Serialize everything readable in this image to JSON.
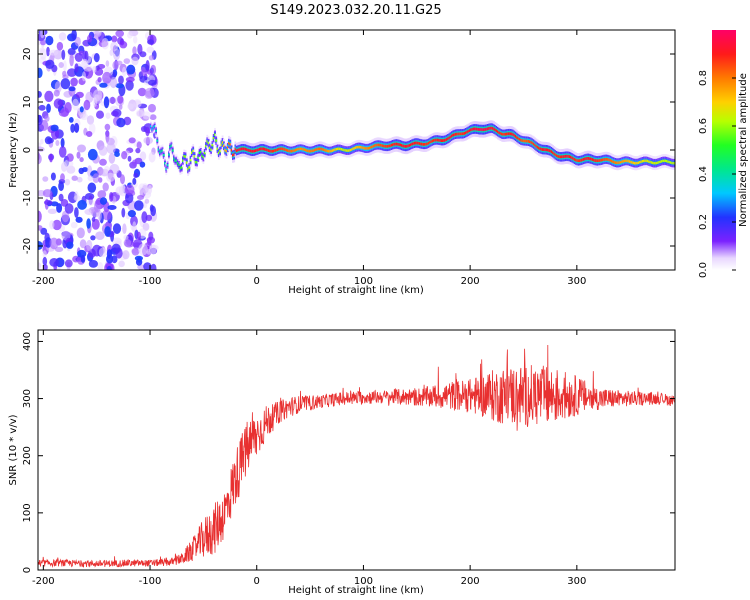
{
  "title": "S149.2023.032.20.11.G25",
  "chart_data": [
    {
      "type": "heatmap",
      "xlabel": "Height of straight line (km)",
      "ylabel": "Frequency (Hz)",
      "xlim": [
        -205,
        392
      ],
      "ylim": [
        -25,
        25
      ],
      "x_ticks": [
        -200,
        -100,
        0,
        100,
        200,
        300
      ],
      "y_ticks": [
        -20,
        -10,
        0,
        10,
        20
      ],
      "grid": false,
      "colorbar": {
        "label": "Normalized spectral amplitude",
        "range": [
          0,
          1
        ],
        "ticks": [
          "0.0",
          "0.2",
          "0.4",
          "0.6",
          "0.8"
        ]
      },
      "noise_region_x": [
        -205,
        -95
      ],
      "ridge": {
        "x": [
          -100,
          -95,
          -90,
          -85,
          -80,
          -75,
          -70,
          -65,
          -60,
          -55,
          -50,
          -45,
          -40,
          -35,
          -30,
          -25,
          -20,
          -10,
          0,
          20,
          40,
          60,
          80,
          100,
          120,
          140,
          160,
          180,
          190,
          200,
          210,
          220,
          230,
          240,
          250,
          260,
          270,
          280,
          290,
          300,
          310,
          320,
          340,
          360,
          380,
          392
        ],
        "frequency": [
          6,
          3,
          -1,
          -3,
          1,
          -4,
          -2,
          -3,
          -1,
          -2,
          0,
          1,
          2,
          0,
          1,
          0,
          0,
          0,
          0,
          0,
          0,
          0,
          0,
          0.5,
          1,
          1,
          1.5,
          2.5,
          3.5,
          4,
          4.5,
          4.3,
          3.5,
          3,
          2,
          1,
          0,
          -1,
          -1.5,
          -2,
          -2,
          -2,
          -2.5,
          -2.5,
          -2.5,
          -2.5
        ],
        "amplitude": [
          0.3,
          0.35,
          0.4,
          0.35,
          0.4,
          0.45,
          0.55,
          0.6,
          0.6,
          0.5,
          0.55,
          0.6,
          0.55,
          0.6,
          0.7,
          0.85,
          0.9,
          0.9,
          0.9,
          0.85,
          0.75,
          0.8,
          0.6,
          0.75,
          0.85,
          0.9,
          0.85,
          0.9,
          0.85,
          0.9,
          0.95,
          0.9,
          0.85,
          0.9,
          0.8,
          0.85,
          0.9,
          0.85,
          0.9,
          0.85,
          0.9,
          0.85,
          0.75,
          0.65,
          0.6,
          0.6
        ]
      }
    },
    {
      "type": "line",
      "xlabel": "Height of straight line (km)",
      "ylabel": "SNR (10 * v/v)",
      "xlim": [
        -205,
        392
      ],
      "ylim": [
        0,
        420
      ],
      "x_ticks": [
        -200,
        -100,
        0,
        100,
        200,
        300
      ],
      "y_ticks": [
        0,
        100,
        200,
        300,
        400
      ],
      "grid": false,
      "series": [
        {
          "color": "#e83030",
          "x": [
            -205,
            -180,
            -150,
            -120,
            -100,
            -80,
            -70,
            -60,
            -50,
            -40,
            -30,
            -20,
            -10,
            0,
            10,
            20,
            30,
            40,
            60,
            80,
            100,
            120,
            140,
            160,
            180,
            200,
            220,
            240,
            260,
            280,
            300,
            320,
            340,
            360,
            380,
            392
          ],
          "values": [
            12,
            12,
            11,
            12,
            12,
            14,
            20,
            35,
            55,
            70,
            100,
            160,
            210,
            235,
            260,
            275,
            285,
            290,
            295,
            300,
            302,
            303,
            303,
            303,
            305,
            305,
            305,
            305,
            305,
            305,
            305,
            300,
            300,
            300,
            300,
            295
          ],
          "noise": [
            6,
            6,
            6,
            6,
            6,
            7,
            10,
            20,
            35,
            45,
            45,
            50,
            50,
            40,
            30,
            20,
            18,
            15,
            12,
            12,
            12,
            12,
            15,
            18,
            25,
            30,
            45,
            55,
            55,
            50,
            35,
            20,
            15,
            12,
            10,
            10
          ]
        }
      ]
    }
  ]
}
